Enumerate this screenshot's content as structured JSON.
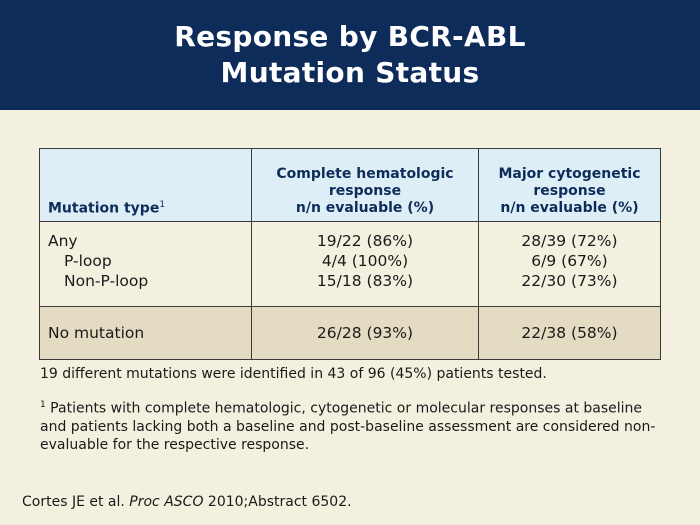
{
  "title": {
    "line1": "Response by BCR-ABL",
    "line2": "Mutation Status"
  },
  "table": {
    "headers": {
      "mutation_type": "Mutation type",
      "mutation_type_sup": "1",
      "chr_line1": "Complete hematologic",
      "chr_line2": "response",
      "chr_line3": "n/n evaluable (%)",
      "mcr_line1": "Major cytogenetic",
      "mcr_line2": "response",
      "mcr_line3": "n/n evaluable (%)"
    },
    "rows": [
      {
        "type": "Any",
        "chr": "19/22 (86%)",
        "mcr": "28/39 (72%)"
      },
      {
        "type": "P-loop",
        "chr": "4/4 (100%)",
        "mcr": "6/9 (67%)"
      },
      {
        "type": "Non-P-loop",
        "chr": "15/18 (83%)",
        "mcr": "22/30 (73%)"
      },
      {
        "type": "No mutation",
        "chr": "26/28 (93%)",
        "mcr": "22/38 (58%)"
      }
    ]
  },
  "notes": {
    "summary": "19 different mutations were identified in 43 of 96 (45%) patients tested.",
    "footnote_marker": "1",
    "footnote_text": " Patients with complete hematologic, cytogenetic or molecular responses at baseline and patients lacking both a baseline and post-baseline assessment are considered non-evaluable for the respective response."
  },
  "citation": {
    "authors": "Cortes JE et al. ",
    "journal": "Proc ASCO",
    "rest": " 2010;Abstract 6502."
  },
  "colors": {
    "title_bar": "#0e2c5a",
    "background": "#f4f0e0",
    "header_fill": "#ddeef6",
    "highlight_row": "#e3dcc3"
  }
}
